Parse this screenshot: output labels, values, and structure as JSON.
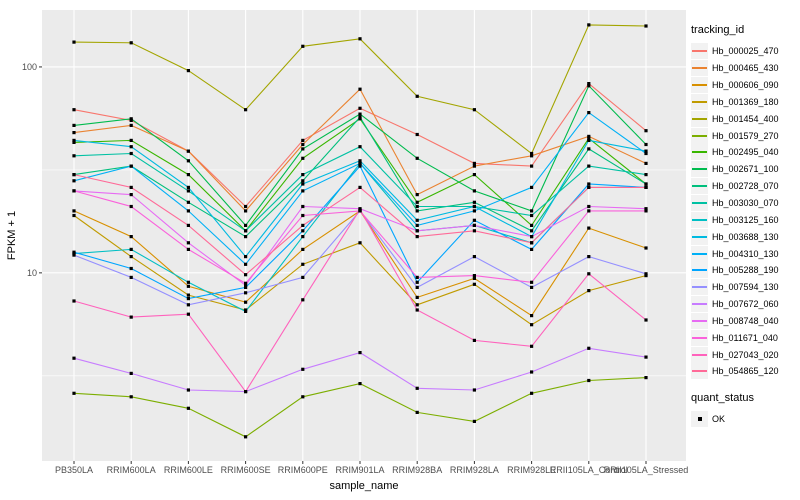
{
  "figure": {
    "bg": "#FFFFFF",
    "panel_bg": "#EBEBEB",
    "grid_color": "#FFFFFF",
    "tick_color": "#333333",
    "tick_label_color": "#4D4D4D",
    "axis_title_color": "#000000",
    "point_color": "#000000",
    "legend_key_bg": "#F2F2F2"
  },
  "chart_data": {
    "type": "line",
    "title": "",
    "xlabel": "sample_name",
    "ylabel": "FPKM + 1",
    "y_scale": "log10",
    "ylim": [
      1.22,
      189
    ],
    "y_ticks": [
      10,
      100
    ],
    "y_minor_ticks": [
      3.162,
      31.623
    ],
    "grid": true,
    "legend_position": "right",
    "categories": [
      "PB350LA",
      "RRIM600LA",
      "RRIM600LE",
      "RRIM600SE",
      "RRIM600PE",
      "RRIM901LA",
      "RRIM928BA",
      "RRIM928LA",
      "RRIM928LE",
      "RRII105LA_Control",
      "RRII105LA_Stressed"
    ],
    "series": [
      {
        "name": "Hb_000025_470",
        "color": "#F8766D",
        "values": [
          62,
          55,
          39,
          21,
          44,
          63,
          47,
          34,
          33,
          83,
          49
        ]
      },
      {
        "name": "Hb_000465_430",
        "color": "#EA8331",
        "values": [
          48,
          52,
          39,
          20,
          42,
          78,
          24,
          33,
          37,
          46,
          34
        ]
      },
      {
        "name": "Hb_000606_090",
        "color": "#D89000",
        "values": [
          20,
          15,
          8.6,
          7.2,
          13,
          20,
          7.6,
          9.4,
          6.2,
          16.5,
          13.2
        ]
      },
      {
        "name": "Hb_001369_180",
        "color": "#C09B00",
        "values": [
          19,
          12,
          7.8,
          6.6,
          11,
          14,
          7.0,
          8.8,
          5.6,
          8.2,
          9.7
        ]
      },
      {
        "name": "Hb_001454_400",
        "color": "#A3A500",
        "values": [
          132,
          131,
          96,
          62,
          126,
          137,
          72,
          62,
          38,
          160,
          158
        ]
      },
      {
        "name": "Hb_001579_270",
        "color": "#7CAE00",
        "values": [
          2.6,
          2.5,
          2.2,
          1.6,
          2.5,
          2.9,
          2.1,
          1.9,
          2.6,
          3.0,
          3.1
        ]
      },
      {
        "name": "Hb_002495_040",
        "color": "#39B600",
        "values": [
          43,
          44,
          30,
          16,
          36,
          56,
          22,
          30,
          17,
          45,
          27
        ]
      },
      {
        "name": "Hb_002671_100",
        "color": "#00BB4E",
        "values": [
          52,
          56,
          35,
          17,
          40,
          59,
          36,
          25,
          20,
          81,
          42
        ]
      },
      {
        "name": "Hb_002728_070",
        "color": "#00BF7D",
        "values": [
          30,
          33,
          22,
          15,
          28,
          57,
          20,
          22,
          16,
          40,
          27
        ]
      },
      {
        "name": "Hb_003030_070",
        "color": "#00C1A3",
        "values": [
          37,
          38,
          25,
          16,
          30,
          41,
          21,
          21,
          19,
          33,
          30
        ]
      },
      {
        "name": "Hb_003125_160",
        "color": "#00BFC4",
        "values": [
          12.4,
          13,
          9.0,
          6.5,
          15,
          34,
          16,
          17,
          14,
          26,
          26
        ]
      },
      {
        "name": "Hb_003688_130",
        "color": "#00BAE0",
        "values": [
          44,
          41,
          26,
          12,
          27,
          35,
          18,
          21,
          15,
          44,
          39
        ]
      },
      {
        "name": "Hb_004310_130",
        "color": "#00B0F6",
        "values": [
          28,
          33,
          20,
          11,
          25,
          34,
          17,
          20,
          26,
          60,
          38
        ]
      },
      {
        "name": "Hb_005288_190",
        "color": "#00A5FF",
        "values": [
          12.6,
          10.5,
          7.5,
          8.5,
          16,
          33,
          9.0,
          18,
          13,
          27,
          26
        ]
      },
      {
        "name": "Hb_007594_130",
        "color": "#9590FF",
        "values": [
          12.2,
          9.5,
          7.0,
          8.0,
          9.5,
          20,
          8.5,
          12,
          8.5,
          12,
          9.9
        ]
      },
      {
        "name": "Hb_007672_060",
        "color": "#C77CFF",
        "values": [
          3.85,
          3.25,
          2.7,
          2.65,
          3.4,
          4.1,
          2.75,
          2.7,
          3.3,
          4.3,
          3.9
        ]
      },
      {
        "name": "Hb_008748_040",
        "color": "#E76BF3",
        "values": [
          25,
          24,
          14,
          8.7,
          21,
          20.5,
          16,
          17,
          15,
          21,
          20.5
        ]
      },
      {
        "name": "Hb_011671_040",
        "color": "#FA62DB",
        "values": [
          25,
          21,
          13,
          8.9,
          19,
          20,
          9.5,
          9.7,
          9.0,
          20,
          20
        ]
      },
      {
        "name": "Hb_027043_020",
        "color": "#FF62BC",
        "values": [
          7.3,
          6.1,
          6.3,
          2.65,
          7.4,
          20.3,
          6.6,
          4.7,
          4.4,
          9.9,
          5.9
        ]
      },
      {
        "name": "Hb_054865_120",
        "color": "#FF6A98",
        "values": [
          30,
          26,
          17,
          9.8,
          17,
          26,
          15,
          16,
          14,
          26,
          26
        ]
      }
    ],
    "legend": {
      "color_title": "tracking_id",
      "shape_title": "quant_status",
      "shape_items": [
        "OK"
      ]
    }
  }
}
